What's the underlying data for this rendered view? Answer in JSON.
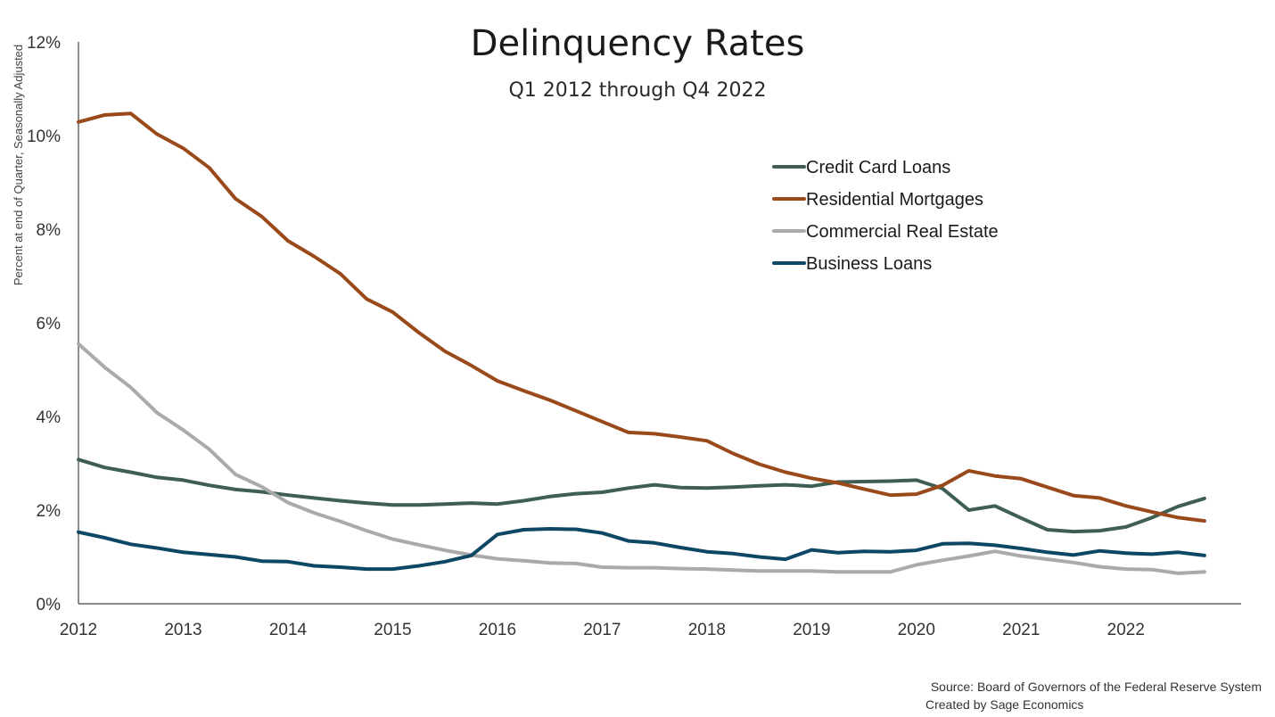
{
  "chart_data": {
    "type": "line",
    "title": "Delinquency Rates",
    "subtitle": "Q1 2012 through Q4 2022",
    "ylabel": "Percent at end of Quarter, Seasonally Adjusted",
    "xlabel": "",
    "ylim": [
      0,
      12
    ],
    "xlim": [
      2012,
      2023.1
    ],
    "yticks": [
      {
        "value": 0,
        "label": "0%"
      },
      {
        "value": 2,
        "label": "2%"
      },
      {
        "value": 4,
        "label": "4%"
      },
      {
        "value": 6,
        "label": "6%"
      },
      {
        "value": 8,
        "label": "8%"
      },
      {
        "value": 10,
        "label": "10%"
      },
      {
        "value": 12,
        "label": "12%"
      }
    ],
    "xticks": [
      {
        "value": 2012,
        "label": "2012"
      },
      {
        "value": 2013,
        "label": "2013"
      },
      {
        "value": 2014,
        "label": "2014"
      },
      {
        "value": 2015,
        "label": "2015"
      },
      {
        "value": 2016,
        "label": "2016"
      },
      {
        "value": 2017,
        "label": "2017"
      },
      {
        "value": 2018,
        "label": "2018"
      },
      {
        "value": 2019,
        "label": "2019"
      },
      {
        "value": 2020,
        "label": "2020"
      },
      {
        "value": 2021,
        "label": "2021"
      },
      {
        "value": 2022,
        "label": "2022"
      }
    ],
    "grid": false,
    "legend_position": "top-right",
    "x_start": 2012,
    "x_step": 0.25,
    "series": [
      {
        "name": "Credit Card Loans",
        "color": "#3f5e54",
        "values": [
          3.08,
          2.91,
          2.81,
          2.7,
          2.64,
          2.53,
          2.44,
          2.39,
          2.32,
          2.26,
          2.2,
          2.15,
          2.11,
          2.11,
          2.13,
          2.15,
          2.13,
          2.2,
          2.29,
          2.35,
          2.38,
          2.47,
          2.54,
          2.48,
          2.47,
          2.49,
          2.52,
          2.54,
          2.51,
          2.6,
          2.61,
          2.62,
          2.64,
          2.46,
          2.0,
          2.09,
          1.83,
          1.58,
          1.54,
          1.56,
          1.64,
          1.84,
          2.08,
          2.25
        ]
      },
      {
        "name": "Residential Mortgages",
        "color": "#9a4a1a",
        "values": [
          10.29,
          10.44,
          10.47,
          10.03,
          9.73,
          9.31,
          8.65,
          8.27,
          7.75,
          7.42,
          7.05,
          6.51,
          6.23,
          5.79,
          5.39,
          5.09,
          4.76,
          4.55,
          4.35,
          4.12,
          3.89,
          3.66,
          3.63,
          3.56,
          3.48,
          3.21,
          2.98,
          2.81,
          2.68,
          2.58,
          2.45,
          2.32,
          2.34,
          2.53,
          2.84,
          2.73,
          2.67,
          2.49,
          2.31,
          2.26,
          2.09,
          1.96,
          1.84,
          1.77
        ]
      },
      {
        "name": "Commercial Real Estate",
        "color": "#aaaaaa",
        "values": [
          5.55,
          5.05,
          4.62,
          4.08,
          3.71,
          3.3,
          2.76,
          2.5,
          2.16,
          1.94,
          1.76,
          1.56,
          1.38,
          1.26,
          1.14,
          1.04,
          0.96,
          0.92,
          0.87,
          0.86,
          0.78,
          0.77,
          0.77,
          0.75,
          0.74,
          0.72,
          0.7,
          0.7,
          0.7,
          0.68,
          0.68,
          0.68,
          0.83,
          0.93,
          1.02,
          1.12,
          1.02,
          0.95,
          0.88,
          0.79,
          0.74,
          0.73,
          0.65,
          0.68
        ]
      },
      {
        "name": "Business Loans",
        "color": "#0e4766",
        "values": [
          1.53,
          1.41,
          1.27,
          1.19,
          1.1,
          1.05,
          1.0,
          0.91,
          0.9,
          0.81,
          0.78,
          0.74,
          0.74,
          0.81,
          0.9,
          1.03,
          1.48,
          1.58,
          1.6,
          1.59,
          1.51,
          1.34,
          1.3,
          1.2,
          1.11,
          1.07,
          1.0,
          0.95,
          1.15,
          1.09,
          1.12,
          1.11,
          1.14,
          1.28,
          1.29,
          1.25,
          1.18,
          1.1,
          1.04,
          1.13,
          1.08,
          1.06,
          1.1,
          1.03
        ]
      }
    ]
  },
  "source": {
    "line1": "Source: Board of Governors of the Federal Reserve System",
    "line2": "Created by Sage Economics"
  }
}
